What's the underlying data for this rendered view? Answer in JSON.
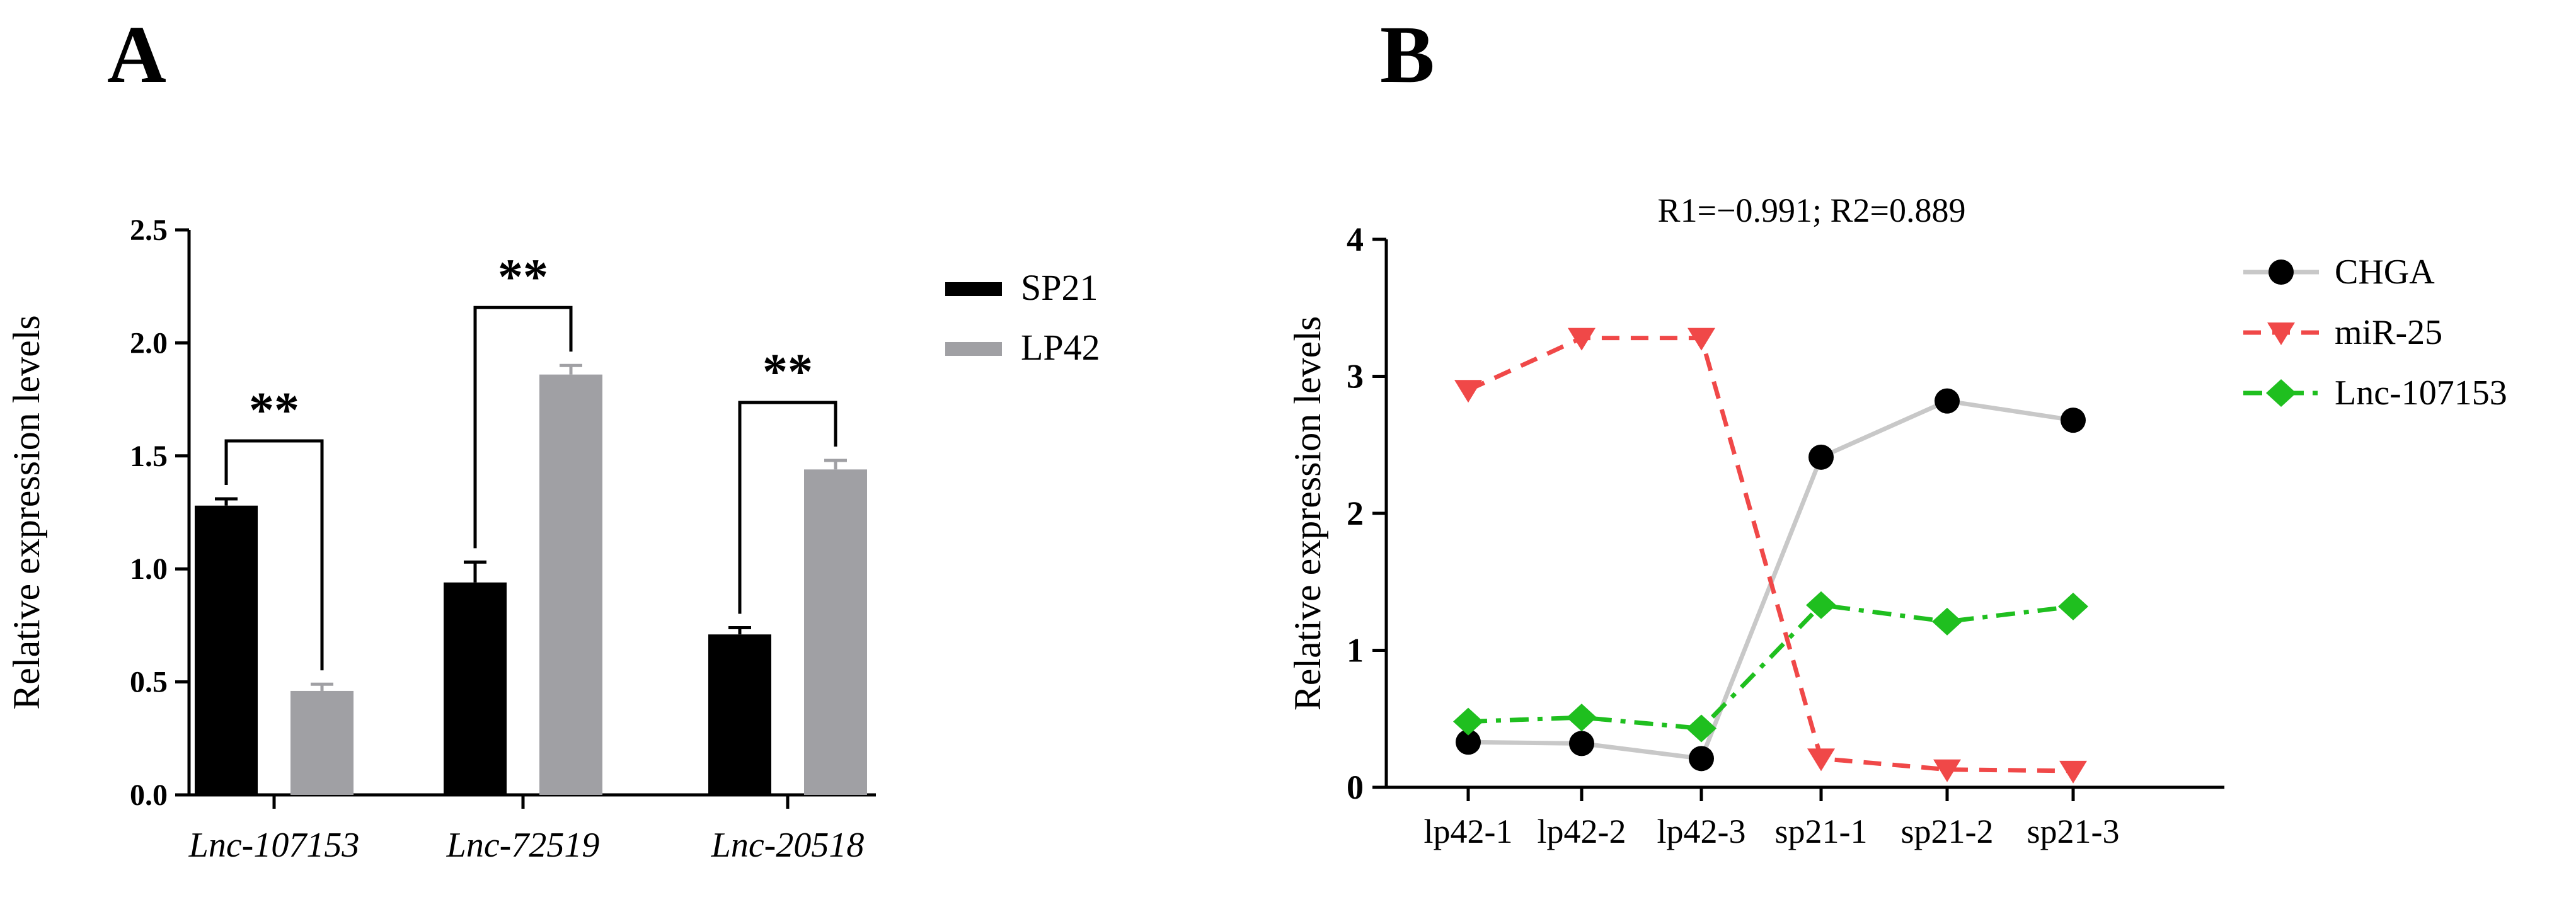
{
  "figure": {
    "panel_a_label": "A",
    "panel_b_label": "B"
  },
  "chart_data": [
    {
      "type": "bar",
      "title": "",
      "xlabel": "",
      "ylabel": "Relative expression levels",
      "ylim": [
        0,
        2.5
      ],
      "yticks": [
        "0.0",
        "0.5",
        "1.0",
        "1.5",
        "2.0",
        "2.5"
      ],
      "categories": [
        "Lnc-107153",
        "Lnc-72519",
        "Lnc-20518"
      ],
      "series": [
        {
          "name": "SP21",
          "values": [
            1.28,
            0.94,
            0.71
          ],
          "errors": [
            0.03,
            0.09,
            0.03
          ],
          "color": "#000000"
        },
        {
          "name": "LP42",
          "values": [
            0.46,
            1.86,
            1.44
          ],
          "errors": [
            0.03,
            0.04,
            0.04
          ],
          "color": "#a0a0a4"
        }
      ],
      "significance": [
        "**",
        "**",
        "**"
      ],
      "legend_position": "right"
    },
    {
      "type": "line",
      "title": "R1=−0.991; R2=0.889",
      "xlabel": "",
      "ylabel": "Relative expression levels",
      "ylim": [
        0,
        4
      ],
      "yticks": [
        "0",
        "1",
        "2",
        "3",
        "4"
      ],
      "x": [
        "lp42-1",
        "lp42-2",
        "lp42-3",
        "sp21-1",
        "sp21-2",
        "sp21-3"
      ],
      "series": [
        {
          "name": "CHGA",
          "values": [
            0.33,
            0.32,
            0.21,
            2.41,
            2.82,
            2.68
          ],
          "color": "#000000",
          "line_color": "#c8c8c8",
          "marker": "circle",
          "dash": "solid"
        },
        {
          "name": "miR-25",
          "values": [
            2.9,
            3.28,
            3.28,
            0.21,
            0.13,
            0.12
          ],
          "color": "#f04848",
          "line_color": "#f04848",
          "marker": "triangle-down",
          "dash": "dashed"
        },
        {
          "name": "Lnc-107153",
          "values": [
            0.48,
            0.51,
            0.43,
            1.33,
            1.21,
            1.32
          ],
          "color": "#1fbf1f",
          "line_color": "#1fbf1f",
          "marker": "diamond",
          "dash": "dashdot"
        }
      ],
      "legend_position": "top-right"
    }
  ]
}
